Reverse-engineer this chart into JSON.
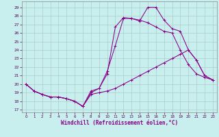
{
  "xlabel": "Windchill (Refroidissement éolien,°C)",
  "bg_color": "#c8eeee",
  "line_color": "#880088",
  "grid_color": "#aacccc",
  "xlim": [
    -0.5,
    23.5
  ],
  "ylim": [
    16.7,
    29.7
  ],
  "y_ticks": [
    17,
    18,
    19,
    20,
    21,
    22,
    23,
    24,
    25,
    26,
    27,
    28,
    29
  ],
  "x_ticks": [
    0,
    1,
    2,
    3,
    4,
    5,
    6,
    7,
    8,
    9,
    10,
    11,
    12,
    13,
    14,
    15,
    16,
    17,
    18,
    19,
    20,
    21,
    22,
    23
  ],
  "line1_x": [
    0,
    1,
    2,
    3,
    4,
    5,
    6,
    7,
    8,
    9,
    10,
    11,
    12,
    13,
    14,
    15,
    16,
    17,
    18,
    19,
    20,
    21,
    22,
    23
  ],
  "line1_y": [
    20.0,
    19.2,
    18.8,
    18.5,
    18.5,
    18.3,
    18.0,
    17.4,
    18.8,
    19.0,
    19.2,
    19.5,
    20.0,
    20.5,
    21.0,
    21.5,
    22.0,
    22.5,
    23.0,
    23.5,
    24.0,
    22.8,
    21.0,
    20.5
  ],
  "line2_x": [
    0,
    1,
    2,
    3,
    4,
    5,
    6,
    7,
    8,
    9,
    10,
    11,
    12,
    13,
    14,
    15,
    16,
    17,
    18,
    19,
    20,
    21,
    22,
    23
  ],
  "line2_y": [
    20.0,
    19.2,
    18.8,
    18.5,
    18.5,
    18.3,
    18.0,
    17.4,
    19.2,
    19.5,
    21.5,
    24.5,
    27.7,
    27.7,
    27.5,
    27.2,
    26.7,
    26.2,
    26.0,
    24.0,
    22.3,
    21.2,
    20.8,
    20.5
  ],
  "line3_x": [
    0,
    1,
    2,
    3,
    4,
    5,
    6,
    7,
    8,
    9,
    10,
    11,
    12,
    13,
    14,
    15,
    16,
    17,
    18,
    19,
    20,
    21,
    22,
    23
  ],
  "line3_y": [
    20.0,
    19.2,
    18.8,
    18.5,
    18.5,
    18.3,
    18.0,
    17.4,
    19.0,
    19.5,
    21.2,
    26.7,
    27.8,
    27.7,
    27.4,
    29.0,
    29.0,
    27.5,
    26.5,
    26.2,
    24.0,
    22.8,
    21.0,
    20.5
  ]
}
